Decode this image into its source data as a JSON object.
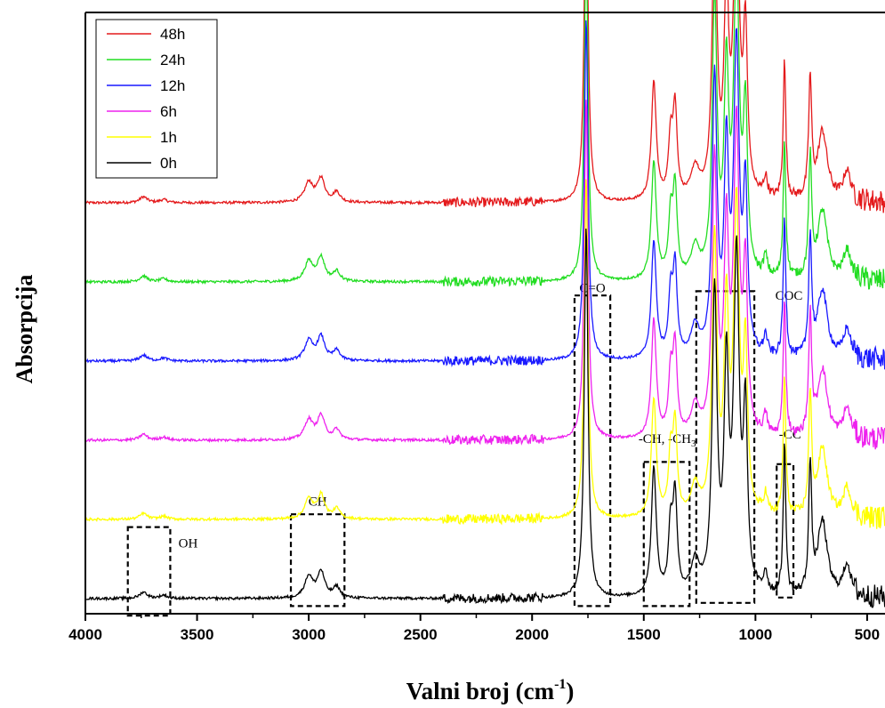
{
  "chart_data": {
    "type": "line",
    "xlabel": "Valni broj (cm",
    "xlabel_sup": "-1",
    "xlabel_end": ")",
    "ylabel": "Absorpcija",
    "xlim": [
      4000,
      420
    ],
    "x_reversed": true,
    "y_ticks_shown": false,
    "legend_position": "top-left",
    "xticks": [
      {
        "value": 4000,
        "label": "4000"
      },
      {
        "value": 3500,
        "label": "3500"
      },
      {
        "value": 3000,
        "label": "3000"
      },
      {
        "value": 2500,
        "label": "2500"
      },
      {
        "value": 2000,
        "label": "2000"
      },
      {
        "value": 1500,
        "label": "1500"
      },
      {
        "value": 1000,
        "label": "1000"
      },
      {
        "value": 500,
        "label": "500"
      }
    ],
    "series": [
      {
        "name": "48h",
        "color": "#e41a1c",
        "offset": 5
      },
      {
        "name": "24h",
        "color": "#22dd22",
        "offset": 4
      },
      {
        "name": "12h",
        "color": "#1a1aff",
        "offset": 3
      },
      {
        "name": "6h",
        "color": "#ee22ee",
        "offset": 2
      },
      {
        "name": "1h",
        "color": "#ffff00",
        "offset": 1
      },
      {
        "name": "0h",
        "color": "#000000",
        "offset": 0
      }
    ],
    "peaks": [
      {
        "x": 3740,
        "w": 20,
        "h": 0.3
      },
      {
        "x": 3650,
        "w": 20,
        "h": 0.15
      },
      {
        "x": 3000,
        "w": 22,
        "h": 1.0
      },
      {
        "x": 2945,
        "w": 20,
        "h": 1.2
      },
      {
        "x": 2875,
        "w": 18,
        "h": 0.5
      },
      {
        "x": 1758,
        "w": 10,
        "h": 17.5
      },
      {
        "x": 1455,
        "w": 13,
        "h": 6.0
      },
      {
        "x": 1380,
        "w": 11,
        "h": 3.0
      },
      {
        "x": 1360,
        "w": 11,
        "h": 4.5
      },
      {
        "x": 1270,
        "w": 22,
        "h": 1.5
      },
      {
        "x": 1183,
        "w": 13,
        "h": 14.0
      },
      {
        "x": 1130,
        "w": 12,
        "h": 10.0
      },
      {
        "x": 1085,
        "w": 15,
        "h": 15.5
      },
      {
        "x": 1045,
        "w": 11,
        "h": 8.0
      },
      {
        "x": 955,
        "w": 10,
        "h": 1.0
      },
      {
        "x": 870,
        "w": 7,
        "h": 7.0
      },
      {
        "x": 755,
        "w": 8,
        "h": 6.0
      },
      {
        "x": 700,
        "w": 26,
        "h": 3.5
      },
      {
        "x": 590,
        "w": 20,
        "h": 1.5
      }
    ],
    "annotations": [
      {
        "label": "OH",
        "x1": 3810,
        "x2": 3620,
        "ytop": 3.35,
        "ybot": -0.8,
        "label_x": 3540,
        "label_y": 2.4
      },
      {
        "label": "CH",
        "x1": 3080,
        "x2": 2840,
        "ytop": 3.95,
        "ybot": -0.35,
        "label_x": 2960,
        "label_y": 4.35
      },
      {
        "label": "C=O",
        "x1": 1810,
        "x2": 1650,
        "ytop": 14.2,
        "ybot": -0.35,
        "label_x": 1730,
        "label_y": 14.35
      },
      {
        "label": "-CH, -CH",
        "sub": "3",
        "x1": 1500,
        "x2": 1295,
        "ytop": 6.4,
        "ybot": -0.35,
        "label_x": 1395,
        "label_y": 7.3
      },
      {
        "label": "COC",
        "x1": 1265,
        "x2": 1005,
        "ytop": 14.4,
        "ybot": -0.2,
        "label_x": 850,
        "label_y": 14.0
      },
      {
        "label": "-CC",
        "x1": 905,
        "x2": 830,
        "ytop": 6.3,
        "ybot": 0.05,
        "label_x": 845,
        "label_y": 7.5
      }
    ]
  }
}
